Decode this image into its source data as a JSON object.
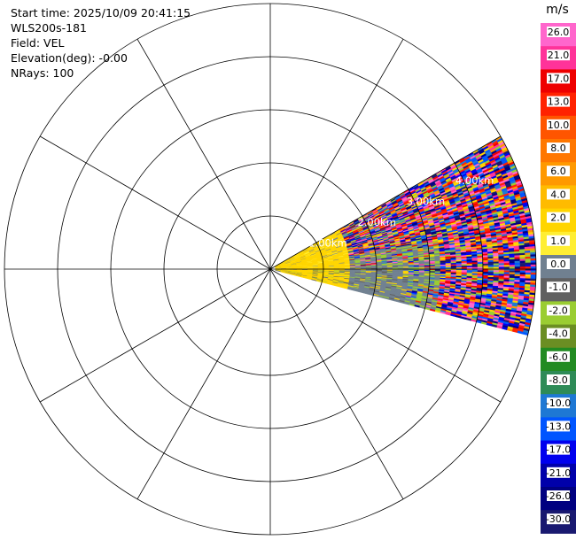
{
  "info": {
    "start_time": "Start time: 2025/10/09 20:41:15",
    "instrument": "WLS200s-181",
    "field": "Field: VEL",
    "elevation": "Elevation(deg): -0.00",
    "nrays": "NRays: 100"
  },
  "chart_data": {
    "type": "heatmap",
    "projection": "polar-ppi",
    "field": "VEL",
    "units": "m/s",
    "sector_azimuth_deg": [
      60,
      104
    ],
    "range_rings_km": [
      1.0,
      2.0,
      3.0,
      4.0
    ],
    "range_ring_labels": [
      "1.00km",
      "2.00km",
      "3.00km",
      "4.00km"
    ],
    "max_range_km": 5.0,
    "radial_lines_deg": [
      0,
      30,
      60,
      90,
      120,
      150,
      180,
      210,
      240,
      270,
      300,
      330
    ],
    "colorbar": {
      "label": "m/s",
      "tick_labels": [
        "26.0",
        "21.0",
        "17.0",
        "13.0",
        "10.0",
        "8.0",
        "6.0",
        "4.0",
        "2.0",
        "1.0",
        "0.0",
        "-1.0",
        "-2.0",
        "-4.0",
        "-6.0",
        "-8.0",
        "-10.0",
        "-13.0",
        "-17.0",
        "-21.0",
        "-26.0",
        "-30.0"
      ],
      "colors": [
        "#ff66cc",
        "#ff3399",
        "#ee0000",
        "#ff2200",
        "#ff5500",
        "#ff7700",
        "#ff9900",
        "#ffbb00",
        "#ffd500",
        "#ffee33",
        "#708090",
        "#606060",
        "#9acd32",
        "#6b8e23",
        "#228b22",
        "#2e8b57",
        "#1e78d4",
        "#0055ff",
        "#0000ee",
        "#0000aa",
        "#000080",
        "#191970"
      ]
    },
    "region_summary": [
      {
        "range_km": [
          0.0,
          1.5
        ],
        "dominant": "yellow",
        "approx_velocity_ms": 3.0
      },
      {
        "range_km": [
          1.0,
          2.5
        ],
        "dominant": "gray",
        "approx_velocity_ms": 0.0
      },
      {
        "range_km": [
          2.5,
          5.0
        ],
        "dominant": "mixed noise",
        "approx_velocity_ms": null
      }
    ]
  }
}
